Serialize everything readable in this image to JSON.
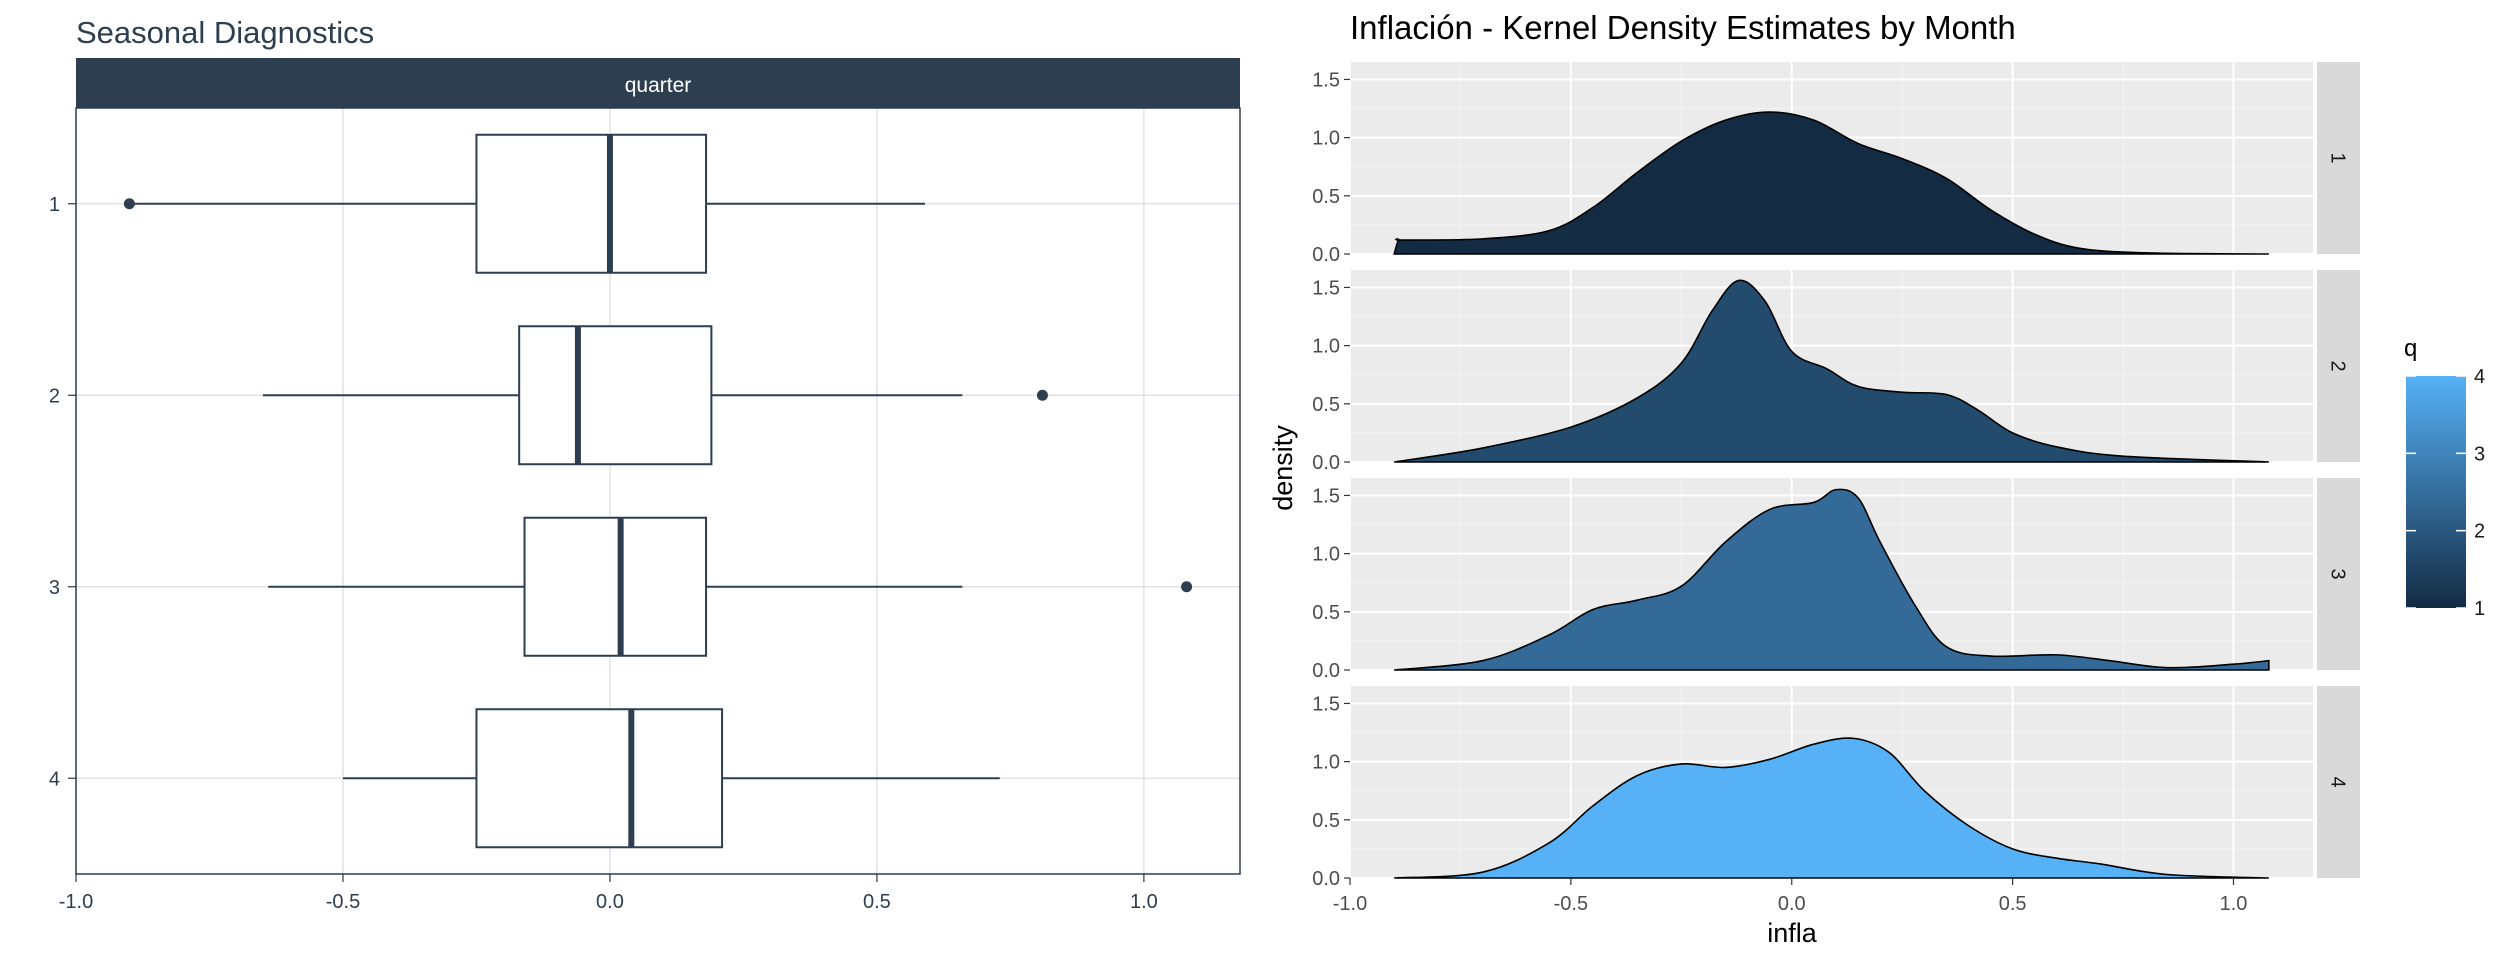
{
  "chart_data": [
    {
      "type": "boxplot",
      "title": "Seasonal Diagnostics",
      "facet_strip": "quarter",
      "xlim": [
        -1.0,
        1.18
      ],
      "x_ticks": [
        "-1.0",
        "-0.5",
        "0.0",
        "0.5",
        "1.0"
      ],
      "x_tick_values": [
        -1.0,
        -0.5,
        0.0,
        0.5,
        1.0
      ],
      "categories": [
        "1",
        "2",
        "3",
        "4"
      ],
      "boxes": [
        {
          "label": "1",
          "whisker_low": -0.89,
          "q1": -0.25,
          "median": 0.0,
          "q3": 0.18,
          "whisker_high": 0.59,
          "outliers": [
            -0.9
          ]
        },
        {
          "label": "2",
          "whisker_low": -0.65,
          "q1": -0.17,
          "median": -0.06,
          "q3": 0.19,
          "whisker_high": 0.66,
          "outliers": [
            0.81
          ]
        },
        {
          "label": "3",
          "whisker_low": -0.64,
          "q1": -0.16,
          "median": 0.02,
          "q3": 0.18,
          "whisker_high": 0.66,
          "outliers": [
            1.08
          ]
        },
        {
          "label": "4",
          "whisker_low": -0.5,
          "q1": -0.25,
          "median": 0.04,
          "q3": 0.21,
          "whisker_high": 0.73,
          "outliers": []
        }
      ],
      "colors": {
        "line": "#2c3e50",
        "strip_bg": "#2c3e50",
        "strip_text": "#ffffff",
        "grid": "#dcdcdc"
      }
    },
    {
      "type": "area",
      "title": "Inflación - Kernel Density Estimates by Month",
      "xlabel": "infla",
      "ylabel": "density",
      "xlim": [
        -1.0,
        1.18
      ],
      "ylim": [
        0,
        1.65
      ],
      "x_ticks": [
        "-1.0",
        "-0.5",
        "0.0",
        "0.5",
        "1.0"
      ],
      "x_tick_values": [
        -1.0,
        -0.5,
        0.0,
        0.5,
        1.0
      ],
      "y_ticks": [
        "0.0",
        "0.5",
        "1.0",
        "1.5"
      ],
      "y_tick_values": [
        0.0,
        0.5,
        1.0,
        1.5
      ],
      "grid": true,
      "panels": [
        {
          "strip": "1",
          "q": 1,
          "color": "#132b43",
          "x": [
            -0.9,
            -0.89,
            -0.88,
            -0.7,
            -0.55,
            -0.45,
            -0.35,
            -0.25,
            -0.15,
            -0.05,
            0.05,
            0.15,
            0.25,
            0.35,
            0.45,
            0.55,
            0.65,
            0.8,
            1.08
          ],
          "y": [
            0.0,
            0.12,
            0.12,
            0.13,
            0.2,
            0.4,
            0.7,
            0.97,
            1.15,
            1.22,
            1.15,
            0.95,
            0.82,
            0.65,
            0.38,
            0.17,
            0.05,
            0.01,
            0.0
          ]
        },
        {
          "strip": "2",
          "q": 2,
          "color": "#234b6e",
          "x": [
            -0.9,
            -0.7,
            -0.5,
            -0.35,
            -0.25,
            -0.18,
            -0.12,
            -0.06,
            0.0,
            0.08,
            0.15,
            0.25,
            0.35,
            0.42,
            0.5,
            0.6,
            0.75,
            1.08
          ],
          "y": [
            0.0,
            0.12,
            0.3,
            0.55,
            0.85,
            1.3,
            1.56,
            1.38,
            0.95,
            0.8,
            0.65,
            0.6,
            0.58,
            0.45,
            0.25,
            0.13,
            0.05,
            0.0
          ]
        },
        {
          "strip": "3",
          "q": 3,
          "color": "#336a98",
          "x": [
            -0.9,
            -0.7,
            -0.55,
            -0.45,
            -0.35,
            -0.25,
            -0.15,
            -0.05,
            0.05,
            0.1,
            0.15,
            0.2,
            0.28,
            0.35,
            0.45,
            0.6,
            0.72,
            0.85,
            1.0,
            1.08
          ],
          "y": [
            0.0,
            0.08,
            0.3,
            0.52,
            0.6,
            0.72,
            1.1,
            1.38,
            1.44,
            1.55,
            1.48,
            1.1,
            0.55,
            0.2,
            0.12,
            0.13,
            0.08,
            0.02,
            0.05,
            0.08
          ]
        },
        {
          "strip": "4",
          "q": 4,
          "color": "#56b1f7",
          "x": [
            -0.9,
            -0.7,
            -0.55,
            -0.45,
            -0.35,
            -0.25,
            -0.15,
            -0.05,
            0.05,
            0.14,
            0.22,
            0.3,
            0.4,
            0.5,
            0.6,
            0.7,
            0.85,
            1.08
          ],
          "y": [
            0.0,
            0.05,
            0.3,
            0.62,
            0.88,
            0.98,
            0.95,
            1.02,
            1.15,
            1.2,
            1.08,
            0.75,
            0.45,
            0.25,
            0.17,
            0.12,
            0.03,
            0.0
          ]
        }
      ],
      "legend": {
        "title": "q",
        "ticks": [
          "1",
          "2",
          "3",
          "4"
        ],
        "tick_values": [
          1,
          2,
          3,
          4
        ],
        "low_color": "#132b43",
        "high_color": "#56b1f7",
        "placement": "right"
      },
      "colors": {
        "panel_bg": "#ebebeb",
        "strip_bg": "#d9d9d9",
        "grid_major": "#ffffff"
      }
    }
  ]
}
